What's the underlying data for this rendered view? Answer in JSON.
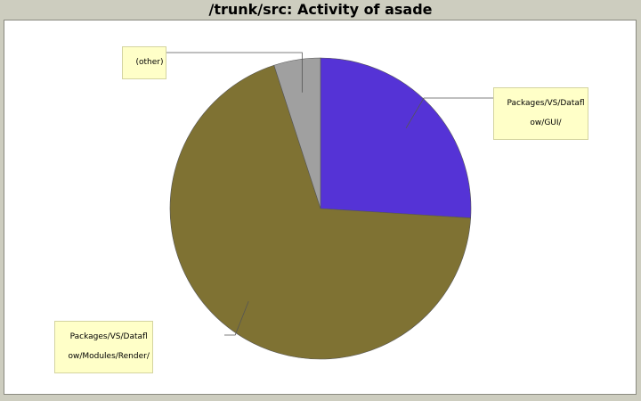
{
  "chart_data": {
    "type": "pie",
    "title": "/trunk/src: Activity of asade",
    "start_angle_deg": 90,
    "direction": "clockwise",
    "slices": [
      {
        "label": "Packages/VS/Dataflow/GUI/",
        "label_lines": [
          "Packages/VS/Datafl",
          "ow/GUI/"
        ],
        "value": 26.0,
        "color": "#5533d6"
      },
      {
        "label": "Packages/VS/Dataflow/Modules/Render/",
        "label_lines": [
          "Packages/VS/Datafl",
          "ow/Modules/Render/"
        ],
        "value": 69.0,
        "color": "#7f7233"
      },
      {
        "label": "(other)",
        "label_lines": [
          "(other)"
        ],
        "value": 5.0,
        "color": "#a0a0a0"
      }
    ]
  }
}
